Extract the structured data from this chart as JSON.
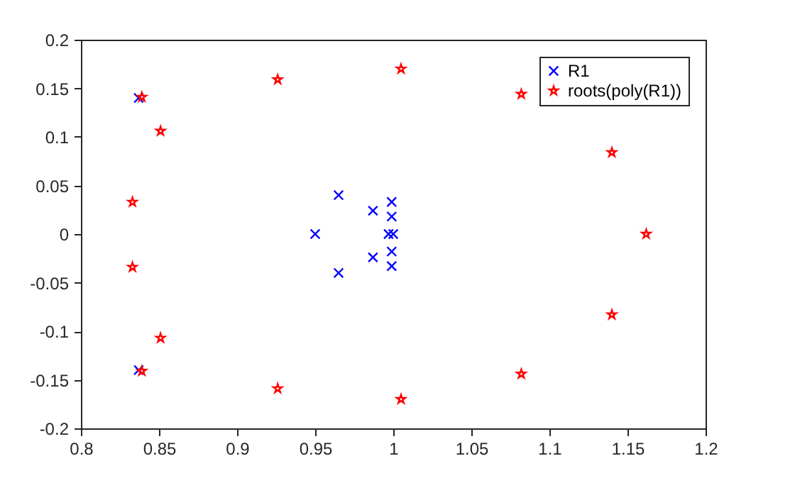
{
  "chart_data": {
    "type": "scatter",
    "xlim": [
      0.8,
      1.2
    ],
    "ylim": [
      -0.2,
      0.2
    ],
    "xticks": [
      0.8,
      0.85,
      0.9,
      0.95,
      1,
      1.05,
      1.1,
      1.15,
      1.2
    ],
    "yticks": [
      -0.2,
      -0.15,
      -0.1,
      -0.05,
      0,
      0.05,
      0.1,
      0.15,
      0.2
    ],
    "grid": false,
    "legend": "top right",
    "series": [
      {
        "name": "R1",
        "color": "#0000ff",
        "marker": "cross",
        "x": [
          0.837,
          0.837,
          0.95,
          0.965,
          0.965,
          0.987,
          0.987,
          0.999,
          0.999,
          0.999,
          0.999,
          0.997,
          1.0
        ],
        "values": [
          0.14,
          -0.14,
          0,
          0.04,
          -0.04,
          0.024,
          -0.024,
          0.033,
          -0.033,
          0.018,
          -0.018,
          0,
          0
        ]
      },
      {
        "name": "roots(poly(R1))",
        "color": "#ff0000",
        "marker": "star",
        "x": [
          0.839,
          0.839,
          0.851,
          0.851,
          0.833,
          0.833,
          0.926,
          0.926,
          1.005,
          1.005,
          1.082,
          1.082,
          1.14,
          1.14,
          1.162
        ],
        "values": [
          0.141,
          -0.141,
          0.106,
          -0.107,
          0.033,
          -0.034,
          0.159,
          -0.159,
          0.17,
          -0.17,
          0.144,
          -0.144,
          0.084,
          -0.083,
          0
        ]
      }
    ]
  }
}
